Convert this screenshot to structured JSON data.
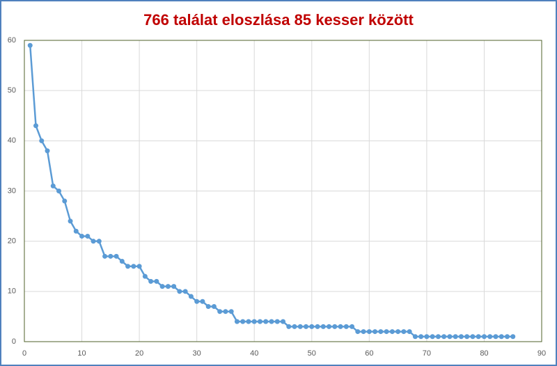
{
  "chart_data": {
    "type": "line",
    "title": "766 találat eloszlása 85 kesser között",
    "x": [
      1,
      2,
      3,
      4,
      5,
      6,
      7,
      8,
      9,
      10,
      11,
      12,
      13,
      14,
      15,
      16,
      17,
      18,
      19,
      20,
      21,
      22,
      23,
      24,
      25,
      26,
      27,
      28,
      29,
      30,
      31,
      32,
      33,
      34,
      35,
      36,
      37,
      38,
      39,
      40,
      41,
      42,
      43,
      44,
      45,
      46,
      47,
      48,
      49,
      50,
      51,
      52,
      53,
      54,
      55,
      56,
      57,
      58,
      59,
      60,
      61,
      62,
      63,
      64,
      65,
      66,
      67,
      68,
      69,
      70,
      71,
      72,
      73,
      74,
      75,
      76,
      77,
      78,
      79,
      80,
      81,
      82,
      83,
      84,
      85
    ],
    "series": [
      {
        "color": "#5b9bd5",
        "values": [
          59,
          43,
          40,
          38,
          31,
          30,
          28,
          24,
          22,
          21,
          21,
          20,
          20,
          17,
          17,
          17,
          16,
          15,
          15,
          15,
          13,
          12,
          12,
          11,
          11,
          11,
          10,
          10,
          9,
          8,
          8,
          7,
          7,
          6,
          6,
          6,
          4,
          4,
          4,
          4,
          4,
          4,
          4,
          4,
          4,
          3,
          3,
          3,
          3,
          3,
          3,
          3,
          3,
          3,
          3,
          3,
          3,
          2,
          2,
          2,
          2,
          2,
          2,
          2,
          2,
          2,
          2,
          1,
          1,
          1,
          1,
          1,
          1,
          1,
          1,
          1,
          1,
          1,
          1,
          1,
          1,
          1,
          1,
          1,
          1
        ]
      }
    ],
    "xlim": [
      0,
      90
    ],
    "xticks": [
      0,
      10,
      20,
      30,
      40,
      50,
      60,
      70,
      80,
      90
    ],
    "ylim": [
      0,
      60
    ],
    "yticks": [
      0,
      10,
      20,
      30,
      40,
      50,
      60
    ],
    "grid": true
  }
}
